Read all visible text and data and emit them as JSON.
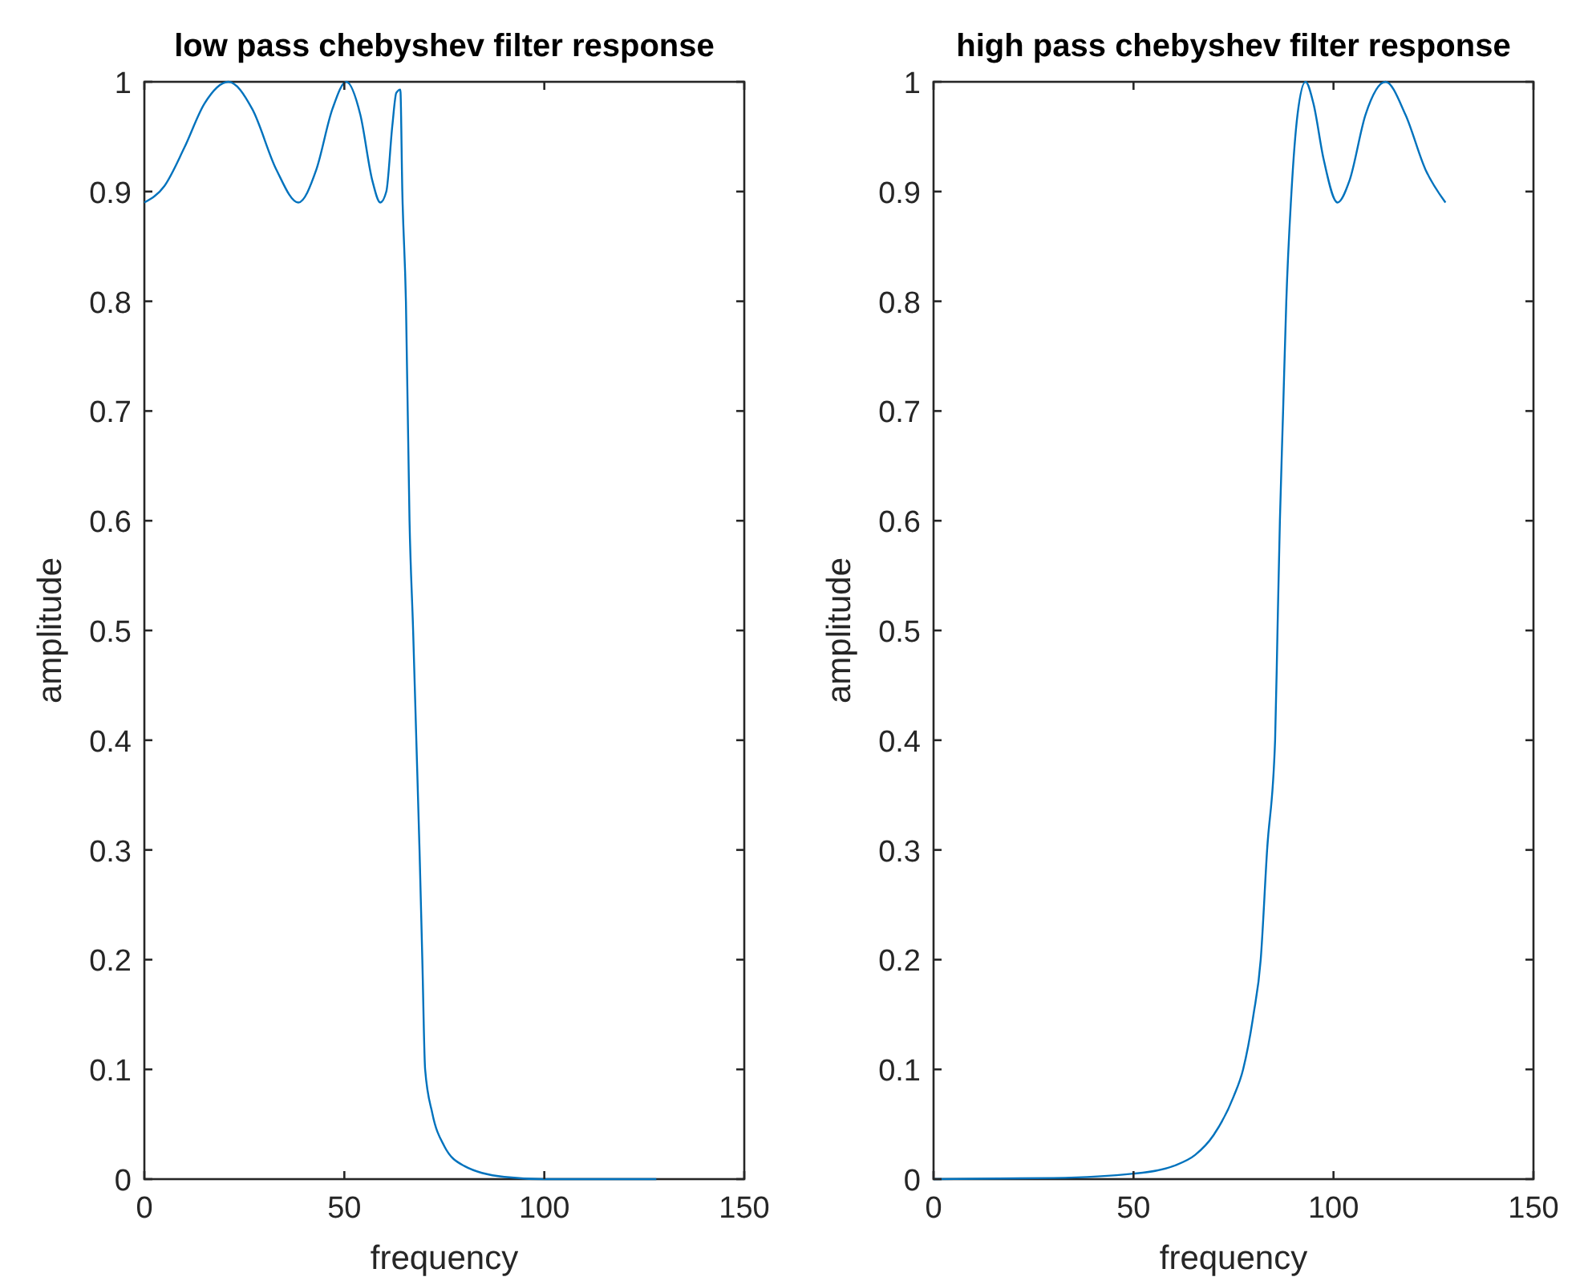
{
  "chart_data": [
    {
      "type": "line",
      "title": "low pass chebyshev filter response",
      "xlabel": "frequency",
      "ylabel": "amplitude",
      "xlim": [
        0,
        150
      ],
      "ylim": [
        0,
        1
      ],
      "xticks": [
        0,
        50,
        100,
        150
      ],
      "yticks": [
        0,
        0.1,
        0.2,
        0.3,
        0.4,
        0.5,
        0.6,
        0.7,
        0.8,
        0.9,
        1
      ],
      "grid": false,
      "marker": "none",
      "line_style": "solid",
      "series": [
        {
          "color": "#0072bd",
          "x": [
            0,
            5,
            10,
            15,
            21,
            27,
            33,
            38.5,
            43,
            47,
            50.5,
            54,
            57,
            59,
            60.5,
            62,
            63,
            64,
            64.5,
            65.4,
            66.3,
            67.2,
            68,
            68.8,
            69.5,
            70.2,
            72,
            75,
            80,
            90,
            100,
            128
          ],
          "values": [
            0.89,
            0.905,
            0.94,
            0.98,
            1,
            0.975,
            0.92,
            0.89,
            0.92,
            0.975,
            1,
            0.97,
            0.91,
            0.89,
            0.9,
            0.96,
            0.99,
            0.993,
            0.9,
            0.8,
            0.6,
            0.5,
            0.4,
            0.3,
            0.2,
            0.1,
            0.06,
            0.03,
            0.012,
            0.002,
            0,
            0
          ]
        }
      ]
    },
    {
      "type": "line",
      "title": "high pass chebyshev filter response",
      "xlabel": "frequency",
      "ylabel": "amplitude",
      "xlim": [
        0,
        150
      ],
      "ylim": [
        0,
        1
      ],
      "xticks": [
        0,
        50,
        100,
        150
      ],
      "yticks": [
        0,
        0.1,
        0.2,
        0.3,
        0.4,
        0.5,
        0.6,
        0.7,
        0.8,
        0.9,
        1
      ],
      "grid": false,
      "marker": "none",
      "line_style": "solid",
      "series": [
        {
          "color": "#0072bd",
          "x": [
            0,
            30,
            50,
            60,
            65.4,
            70,
            75,
            77.4,
            80,
            81.8,
            83.4,
            85.4,
            86,
            86.6,
            87.4,
            88.2,
            89.5,
            91,
            93,
            95,
            97.5,
            101,
            104,
            108,
            113,
            118,
            123,
            128
          ],
          "values": [
            0,
            0.001,
            0.005,
            0.012,
            0.022,
            0.04,
            0.075,
            0.1,
            0.15,
            0.2,
            0.3,
            0.4,
            0.5,
            0.6,
            0.7,
            0.8,
            0.9,
            0.97,
            1,
            0.98,
            0.93,
            0.89,
            0.91,
            0.97,
            1,
            0.97,
            0.92,
            0.89
          ]
        }
      ]
    }
  ]
}
